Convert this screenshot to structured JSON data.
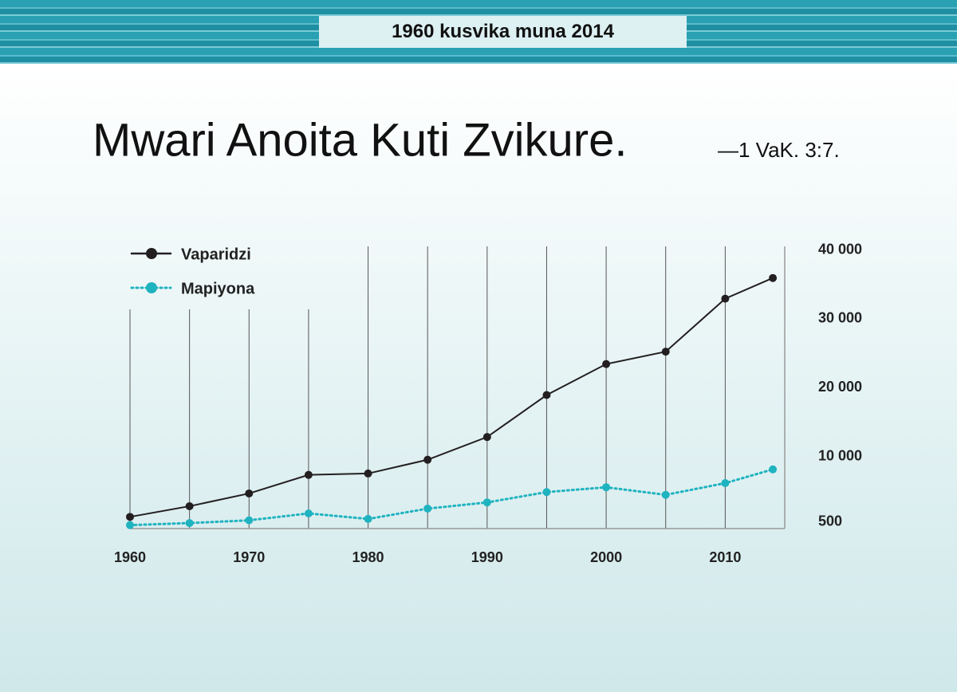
{
  "chart_data": {
    "type": "line",
    "banner": "1960 kusvika muna 2014",
    "title": "Mwari Anoita Kuti Zvikure.",
    "citation": "—1 VaK. 3:7.",
    "x": [
      1960,
      1965,
      1970,
      1975,
      1980,
      1985,
      1990,
      1995,
      2000,
      2005,
      2010,
      2014
    ],
    "series": [
      {
        "name": "Vaparidzi",
        "color": "#231f20",
        "style": "solid",
        "values": [
          1700,
          3250,
          5100,
          7800,
          8000,
          10000,
          13300,
          19400,
          23900,
          25700,
          33400,
          36400
        ]
      },
      {
        "name": "Mapiyona",
        "color": "#1fb3c0",
        "style": "dotted",
        "values": [
          500,
          800,
          1200,
          2200,
          1400,
          2900,
          3800,
          5300,
          6000,
          4900,
          6600,
          8600
        ]
      }
    ],
    "xlim": [
      1960,
      2015
    ],
    "xticks": [
      1960,
      1970,
      1980,
      1990,
      2000,
      2010
    ],
    "xminorticks": [
      1960,
      1965,
      1970,
      1975,
      1980,
      1985,
      1990,
      1995,
      2000,
      2005,
      2010
    ],
    "ylim": [
      0,
      41000
    ],
    "yticks": [
      500,
      {
        "value": 10000,
        "label": "10 000"
      },
      {
        "value": 20000,
        "label": "20 000"
      },
      {
        "value": 30000,
        "label": "30 000"
      },
      {
        "value": 40000,
        "label": "40 000"
      }
    ],
    "yaxis_side": "right",
    "legend": "top-left"
  }
}
